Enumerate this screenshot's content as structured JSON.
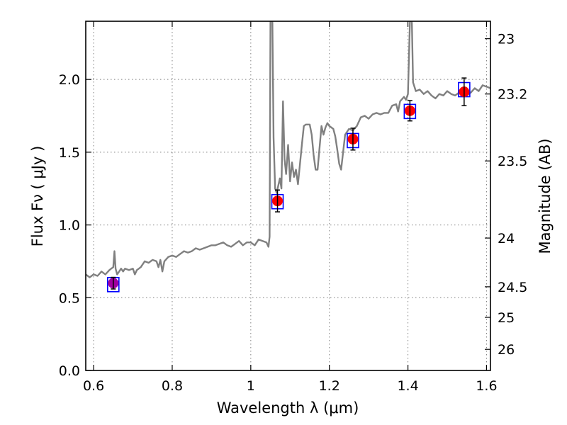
{
  "chart_data": {
    "type": "line",
    "xlabel": "Wavelength  λ (μm)",
    "ylabel": "Flux  Fν  ( μJy )",
    "ylabel_right": "Magnitude (AB)",
    "xlim": [
      0.58,
      1.61
    ],
    "ylim": [
      0.0,
      2.4
    ],
    "grid": true,
    "x_ticks": [
      0.6,
      0.8,
      1.0,
      1.2,
      1.4,
      1.6
    ],
    "x_tick_labels": [
      "0.6",
      "0.8",
      "1",
      "1.2",
      "1.4",
      "1.6"
    ],
    "y_ticks": [
      0.0,
      0.5,
      1.0,
      1.5,
      2.0
    ],
    "y_tick_labels": [
      "0.0",
      "0.5",
      "1.0",
      "1.5",
      "2.0"
    ],
    "right_ticks": [
      {
        "label": "23",
        "flux": 2.28
      },
      {
        "label": "23.2",
        "flux": 1.9
      },
      {
        "label": "23.5",
        "flux": 1.44
      },
      {
        "label": "24",
        "flux": 0.91
      },
      {
        "label": "24.5",
        "flux": 0.575
      },
      {
        "label": "25",
        "flux": 0.365
      },
      {
        "label": "26",
        "flux": 0.145
      }
    ],
    "series": [
      {
        "kind": "spectrum",
        "color": "#808080",
        "points": [
          [
            0.58,
            0.66
          ],
          [
            0.59,
            0.64
          ],
          [
            0.6,
            0.66
          ],
          [
            0.61,
            0.65
          ],
          [
            0.62,
            0.68
          ],
          [
            0.63,
            0.66
          ],
          [
            0.64,
            0.69
          ],
          [
            0.645,
            0.7
          ],
          [
            0.65,
            0.71
          ],
          [
            0.653,
            0.82
          ],
          [
            0.656,
            0.7
          ],
          [
            0.66,
            0.66
          ],
          [
            0.67,
            0.7
          ],
          [
            0.675,
            0.68
          ],
          [
            0.68,
            0.7
          ],
          [
            0.69,
            0.69
          ],
          [
            0.7,
            0.7
          ],
          [
            0.705,
            0.66
          ],
          [
            0.71,
            0.69
          ],
          [
            0.72,
            0.71
          ],
          [
            0.73,
            0.75
          ],
          [
            0.74,
            0.74
          ],
          [
            0.75,
            0.76
          ],
          [
            0.76,
            0.75
          ],
          [
            0.765,
            0.71
          ],
          [
            0.77,
            0.76
          ],
          [
            0.775,
            0.68
          ],
          [
            0.78,
            0.75
          ],
          [
            0.79,
            0.78
          ],
          [
            0.8,
            0.79
          ],
          [
            0.81,
            0.78
          ],
          [
            0.82,
            0.8
          ],
          [
            0.83,
            0.82
          ],
          [
            0.84,
            0.81
          ],
          [
            0.85,
            0.82
          ],
          [
            0.86,
            0.84
          ],
          [
            0.87,
            0.83
          ],
          [
            0.88,
            0.84
          ],
          [
            0.89,
            0.85
          ],
          [
            0.9,
            0.86
          ],
          [
            0.91,
            0.86
          ],
          [
            0.92,
            0.87
          ],
          [
            0.93,
            0.88
          ],
          [
            0.94,
            0.86
          ],
          [
            0.95,
            0.85
          ],
          [
            0.96,
            0.87
          ],
          [
            0.97,
            0.89
          ],
          [
            0.98,
            0.86
          ],
          [
            0.99,
            0.88
          ],
          [
            1.0,
            0.88
          ],
          [
            1.01,
            0.86
          ],
          [
            1.02,
            0.9
          ],
          [
            1.03,
            0.89
          ],
          [
            1.04,
            0.88
          ],
          [
            1.045,
            0.85
          ],
          [
            1.048,
            0.92
          ],
          [
            1.05,
            2.4
          ],
          [
            1.055,
            2.4
          ],
          [
            1.058,
            1.6
          ],
          [
            1.062,
            1.25
          ],
          [
            1.066,
            1.22
          ],
          [
            1.07,
            1.27
          ],
          [
            1.074,
            1.32
          ],
          [
            1.078,
            1.25
          ],
          [
            1.082,
            1.85
          ],
          [
            1.086,
            1.45
          ],
          [
            1.09,
            1.35
          ],
          [
            1.095,
            1.55
          ],
          [
            1.1,
            1.3
          ],
          [
            1.105,
            1.43
          ],
          [
            1.11,
            1.33
          ],
          [
            1.115,
            1.38
          ],
          [
            1.12,
            1.28
          ],
          [
            1.13,
            1.55
          ],
          [
            1.135,
            1.68
          ],
          [
            1.14,
            1.69
          ],
          [
            1.15,
            1.69
          ],
          [
            1.155,
            1.62
          ],
          [
            1.16,
            1.48
          ],
          [
            1.165,
            1.38
          ],
          [
            1.17,
            1.38
          ],
          [
            1.18,
            1.68
          ],
          [
            1.185,
            1.62
          ],
          [
            1.19,
            1.67
          ],
          [
            1.195,
            1.7
          ],
          [
            1.2,
            1.68
          ],
          [
            1.21,
            1.66
          ],
          [
            1.215,
            1.61
          ],
          [
            1.22,
            1.52
          ],
          [
            1.225,
            1.42
          ],
          [
            1.23,
            1.38
          ],
          [
            1.235,
            1.5
          ],
          [
            1.24,
            1.62
          ],
          [
            1.25,
            1.66
          ],
          [
            1.26,
            1.65
          ],
          [
            1.27,
            1.68
          ],
          [
            1.28,
            1.74
          ],
          [
            1.29,
            1.75
          ],
          [
            1.3,
            1.73
          ],
          [
            1.31,
            1.76
          ],
          [
            1.32,
            1.77
          ],
          [
            1.33,
            1.76
          ],
          [
            1.34,
            1.77
          ],
          [
            1.35,
            1.77
          ],
          [
            1.36,
            1.82
          ],
          [
            1.37,
            1.83
          ],
          [
            1.375,
            1.78
          ],
          [
            1.38,
            1.85
          ],
          [
            1.39,
            1.88
          ],
          [
            1.395,
            1.86
          ],
          [
            1.4,
            1.9
          ],
          [
            1.405,
            2.4
          ],
          [
            1.41,
            2.4
          ],
          [
            1.413,
            1.98
          ],
          [
            1.42,
            1.92
          ],
          [
            1.43,
            1.93
          ],
          [
            1.44,
            1.9
          ],
          [
            1.45,
            1.92
          ],
          [
            1.46,
            1.89
          ],
          [
            1.47,
            1.87
          ],
          [
            1.48,
            1.9
          ],
          [
            1.49,
            1.89
          ],
          [
            1.5,
            1.92
          ],
          [
            1.51,
            1.9
          ],
          [
            1.52,
            1.89
          ],
          [
            1.53,
            1.91
          ],
          [
            1.54,
            1.92
          ],
          [
            1.55,
            1.89
          ],
          [
            1.56,
            1.91
          ],
          [
            1.57,
            1.94
          ],
          [
            1.58,
            1.92
          ],
          [
            1.59,
            1.96
          ],
          [
            1.6,
            1.95
          ],
          [
            1.61,
            1.94
          ]
        ]
      },
      {
        "kind": "model-photometry",
        "marker": "square",
        "color": "#0000ff",
        "points": [
          [
            0.65,
            0.59
          ],
          [
            1.068,
            1.16
          ],
          [
            1.26,
            1.58
          ],
          [
            1.405,
            1.78
          ],
          [
            1.543,
            1.93
          ]
        ]
      },
      {
        "kind": "observed-photometry",
        "marker": "circle",
        "color": "#ff0000",
        "first_color": "#a000a0",
        "points": [
          {
            "x": 0.65,
            "y": 0.6,
            "err": 0.04
          },
          {
            "x": 1.068,
            "y": 1.165,
            "err": 0.075
          },
          {
            "x": 1.26,
            "y": 1.59,
            "err": 0.075
          },
          {
            "x": 1.405,
            "y": 1.785,
            "err": 0.07
          },
          {
            "x": 1.543,
            "y": 1.915,
            "err": 0.095
          }
        ]
      }
    ]
  }
}
